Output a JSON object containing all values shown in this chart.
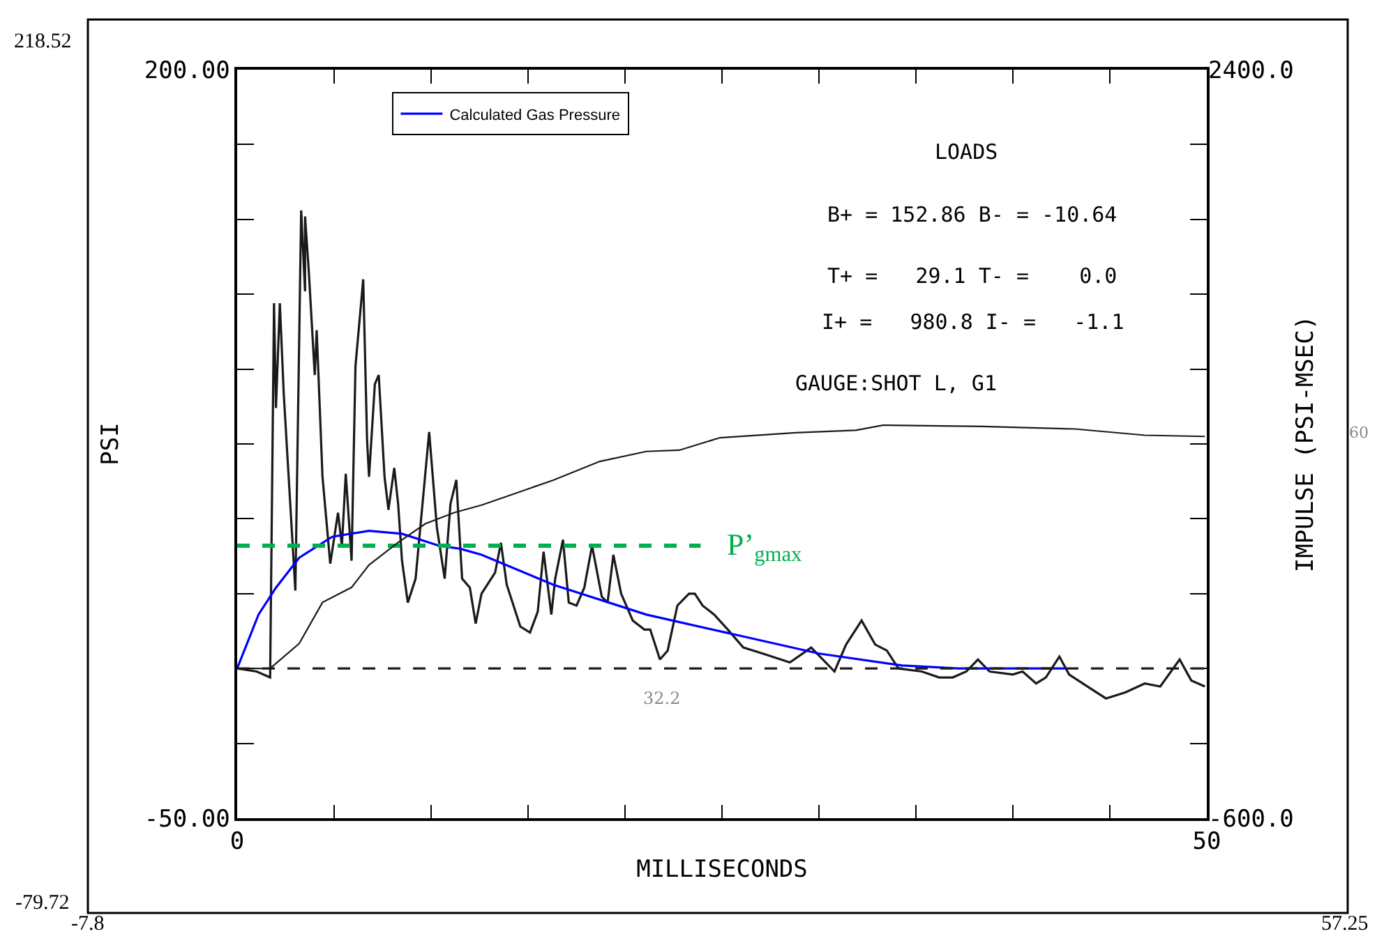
{
  "chart_data": {
    "type": "line",
    "xlim": [
      0,
      50
    ],
    "xticks": [
      0,
      {
        "value": 5,
        "label": null
      },
      {
        "value": 10,
        "label": null
      },
      {
        "value": 15,
        "label": null
      },
      {
        "value": 20,
        "label": null
      },
      {
        "value": 25,
        "label": null
      },
      {
        "value": 30,
        "label": null
      },
      {
        "value": 35,
        "label": null
      },
      {
        "value": 40,
        "label": null
      },
      {
        "value": 45,
        "label": null
      },
      50
    ],
    "xlabel": "MILLISECONDS",
    "ylim": [
      -50,
      200
    ],
    "yticks": [
      {
        "value": -50,
        "label": "-50.00"
      },
      {
        "value": -25,
        "label": null
      },
      {
        "value": 0,
        "label": null
      },
      {
        "value": 25,
        "label": null
      },
      {
        "value": 50,
        "label": null
      },
      {
        "value": 75,
        "label": null
      },
      {
        "value": 100,
        "label": null
      },
      {
        "value": 125,
        "label": null
      },
      {
        "value": 150,
        "label": null
      },
      {
        "value": 175,
        "label": null
      },
      {
        "value": 200,
        "label": "200.00"
      }
    ],
    "ylabel": "PSI",
    "y2lim": [
      -600,
      2400
    ],
    "y2ticks": [
      {
        "value": -600,
        "label": "-600.0"
      },
      {
        "value": -300,
        "label": null
      },
      {
        "value": 0,
        "label": null
      },
      {
        "value": 300,
        "label": null
      },
      {
        "value": 600,
        "label": null
      },
      {
        "value": 900,
        "label": null
      },
      {
        "value": 1200,
        "label": null
      },
      {
        "value": 1500,
        "label": null
      },
      {
        "value": 1800,
        "label": null
      },
      {
        "value": 2100,
        "label": null
      },
      {
        "value": 2400,
        "label": "2400.0"
      }
    ],
    "y2label": "IMPULSE (PSI-MSEC)",
    "legend": "top left",
    "marker": "none",
    "series": [
      {
        "color": "#1a1a1a",
        "axis": "y",
        "x": [
          0,
          1.0,
          1.7,
          1.9,
          2.0,
          2.2,
          2.4,
          2.6,
          3.0,
          3.3,
          3.5,
          3.5,
          3.7,
          4.0,
          4.1,
          4.4,
          4.8,
          5.2,
          5.4,
          5.6,
          5.9,
          6.1,
          6.5,
          6.7,
          6.8,
          7.1,
          7.3,
          7.6,
          7.8,
          8.1,
          8.3,
          8.5,
          8.8,
          9.2,
          9.9,
          10.3,
          10.7,
          11.0,
          11.3,
          11.6,
          12.0,
          12.3,
          12.6,
          13.3,
          13.6,
          13.9,
          14.6,
          15.1,
          15.5,
          15.8,
          16.2,
          16.4,
          16.8,
          17.1,
          17.5,
          17.9,
          18.3,
          18.8,
          19.1,
          19.4,
          19.8,
          20.4,
          21.0,
          21.3,
          21.8,
          22.2,
          22.7,
          23.0,
          23.3,
          23.6,
          24.0,
          24.6,
          25.3,
          26.1,
          27.1,
          28.5,
          29.6,
          30.8,
          31.4,
          32.2,
          32.9,
          33.5,
          34.1,
          35.3,
          36.2,
          36.9,
          37.6,
          38.2,
          38.8,
          40.0,
          40.5,
          41.2,
          41.7,
          42.4,
          42.9,
          43.6,
          44.8,
          45.8,
          46.8,
          47.6,
          48.6,
          49.2,
          49.9
        ],
        "values": [
          0,
          -1,
          -3,
          122,
          87,
          122,
          92,
          70,
          26,
          153,
          126,
          151,
          132,
          98,
          113,
          64,
          35,
          52,
          41,
          65,
          36,
          101,
          130,
          76,
          64,
          95,
          98,
          64,
          53,
          67,
          55,
          36,
          22,
          30,
          79,
          47,
          30,
          55,
          63,
          30,
          27,
          15,
          25,
          32,
          42,
          28,
          14,
          12,
          19,
          39,
          18,
          30,
          43,
          22,
          21,
          27,
          41,
          24,
          22,
          38,
          25,
          16,
          13,
          13,
          3,
          6,
          21,
          23,
          25,
          25,
          21,
          18,
          13,
          7,
          5,
          2,
          7,
          -1,
          8,
          16,
          8,
          6,
          0,
          -1,
          -3,
          -3,
          -1,
          3,
          -1,
          -2,
          -1,
          -5,
          -3,
          4,
          -2,
          -5,
          -10,
          -8,
          -5,
          -6,
          3,
          -4,
          -6
        ]
      },
      {
        "color": "#1a1a1a",
        "axis": "y2",
        "x": [
          0,
          1.7,
          3.2,
          4.4,
          5.9,
          6.8,
          8.3,
          9.7,
          11.2,
          12.6,
          13.9,
          16.3,
          18.7,
          21.1,
          22.8,
          24.9,
          28.8,
          31.9,
          33.3,
          38.4,
          43.2,
          46.8,
          49.9
        ],
        "values": [
          0,
          0,
          100,
          265,
          325,
          415,
          505,
          580,
          625,
          655,
          690,
          755,
          830,
          870,
          875,
          925,
          945,
          955,
          975,
          970,
          960,
          935,
          930
        ]
      },
      {
        "name": "Calculated Gas Pressure",
        "color": "#0000ff",
        "axis": "y",
        "x": [
          0,
          1.1,
          2.0,
          3.2,
          4.9,
          6.8,
          8.5,
          10.4,
          11.5,
          12.6,
          16.3,
          21.1,
          25.2,
          25.9,
          30.0,
          34.3,
          37.2,
          42.7
        ],
        "values": [
          0,
          18,
          27,
          37,
          44,
          46,
          45,
          41,
          40,
          38,
          28,
          18,
          12,
          11,
          5,
          1,
          0,
          0
        ]
      },
      {
        "color": "#00b050",
        "axis": "y",
        "line_style": "dashed",
        "x": [
          0,
          23.9
        ],
        "values": [
          41,
          41
        ]
      }
    ],
    "ref_lines": [
      {
        "axis": "y",
        "value": 0,
        "color": "#1a1a1a",
        "line_style": "dashed"
      }
    ],
    "annotations": [
      "LOADS",
      "B+ = 152.86 B- = -10.64",
      "T+ =   29.1 T- =    0.0",
      "I+ =   980.8 I- =   -1.1",
      "GAUGE:SHOT L, G1",
      "32.2",
      "60",
      "P’$_{gmax}$",
      "218.52",
      "-79.72",
      "-7.8",
      "57.25"
    ]
  }
}
